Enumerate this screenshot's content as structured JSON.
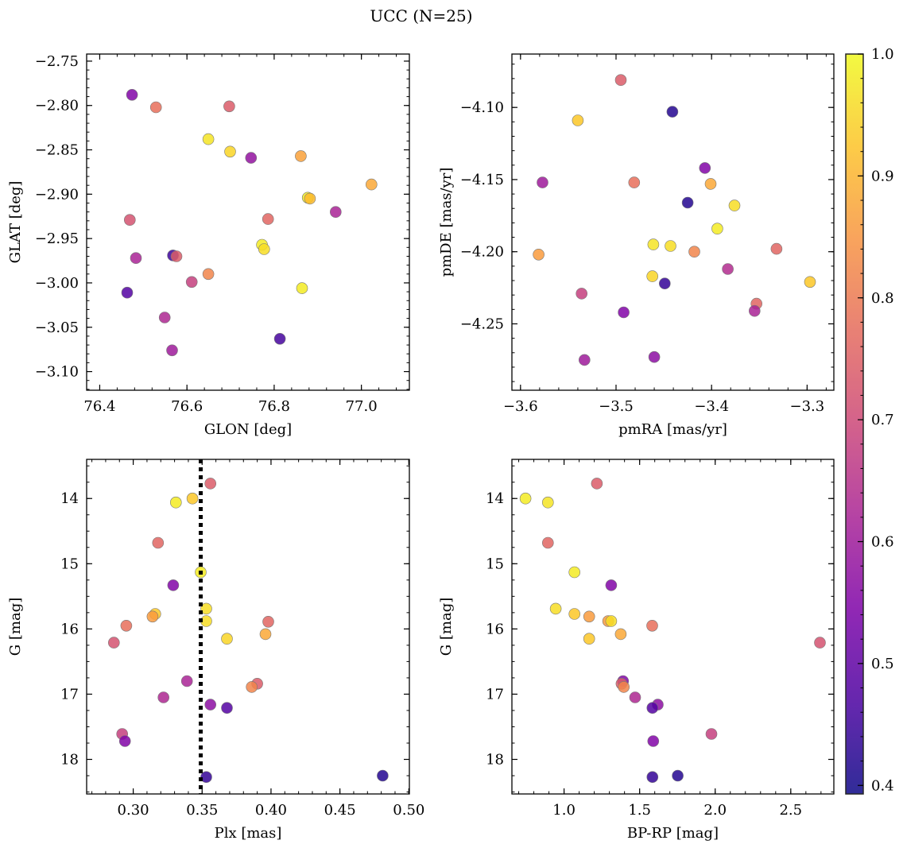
{
  "figure": {
    "title": "UCC (N=25)"
  },
  "colorbar": {
    "range": [
      0.393,
      1.0
    ],
    "ticks": [
      "0.4",
      "0.5",
      "0.6",
      "0.7",
      "0.8",
      "0.9",
      "1.0"
    ],
    "tick_values": [
      0.4,
      0.5,
      0.6,
      0.7,
      0.8,
      0.9,
      1.0
    ],
    "colormap": "plasma"
  },
  "chart_data": [
    {
      "type": "scatter",
      "xlabel": "GLON [deg]",
      "ylabel": "GLAT [deg]",
      "xlim": [
        76.37,
        77.11
      ],
      "ylim": [
        -3.121,
        -2.742
      ],
      "y_inverted": false,
      "xticks": [
        76.4,
        76.6,
        76.8,
        77.0
      ],
      "xtick_labels": [
        "76.4",
        "76.6",
        "76.8",
        "77.0"
      ],
      "yticks": [
        -3.1,
        -3.05,
        -3.0,
        -2.95,
        -2.9,
        -2.85,
        -2.8,
        -2.75
      ],
      "ytick_labels": [
        "−3.10",
        "−3.05",
        "−3.00",
        "−2.95",
        "−2.90",
        "−2.85",
        "−2.80",
        "−2.75"
      ],
      "points": [
        {
          "x": 76.474,
          "y": -2.788,
          "c": 0.55
        },
        {
          "x": 76.529,
          "y": -2.802,
          "c": 0.78
        },
        {
          "x": 76.697,
          "y": -2.801,
          "c": 0.74
        },
        {
          "x": 76.649,
          "y": -2.838,
          "c": 0.97
        },
        {
          "x": 76.699,
          "y": -2.852,
          "c": 0.95
        },
        {
          "x": 76.747,
          "y": -2.859,
          "c": 0.58
        },
        {
          "x": 76.861,
          "y": -2.857,
          "c": 0.87
        },
        {
          "x": 77.023,
          "y": -2.889,
          "c": 0.88
        },
        {
          "x": 76.877,
          "y": -2.904,
          "c": 0.98
        },
        {
          "x": 76.882,
          "y": -2.905,
          "c": 0.91
        },
        {
          "x": 76.941,
          "y": -2.92,
          "c": 0.62
        },
        {
          "x": 76.469,
          "y": -2.929,
          "c": 0.72
        },
        {
          "x": 76.786,
          "y": -2.928,
          "c": 0.76
        },
        {
          "x": 76.772,
          "y": -2.957,
          "c": 0.98
        },
        {
          "x": 76.777,
          "y": -2.962,
          "c": 0.96
        },
        {
          "x": 76.483,
          "y": -2.972,
          "c": 0.62
        },
        {
          "x": 76.568,
          "y": -2.969,
          "c": 0.45
        },
        {
          "x": 76.576,
          "y": -2.97,
          "c": 0.74
        },
        {
          "x": 76.611,
          "y": -2.999,
          "c": 0.68
        },
        {
          "x": 76.649,
          "y": -2.99,
          "c": 0.82
        },
        {
          "x": 76.864,
          "y": -3.006,
          "c": 0.98
        },
        {
          "x": 76.463,
          "y": -3.011,
          "c": 0.48
        },
        {
          "x": 76.549,
          "y": -3.039,
          "c": 0.63
        },
        {
          "x": 76.813,
          "y": -3.063,
          "c": 0.46
        },
        {
          "x": 76.566,
          "y": -3.076,
          "c": 0.6
        }
      ]
    },
    {
      "type": "scatter",
      "xlabel": "pmRA [mas/yr]",
      "ylabel": "pmDE [mas/yr]",
      "xlim": [
        -3.609,
        -3.272
      ],
      "ylim": [
        -4.296,
        -4.063
      ],
      "y_inverted": false,
      "xticks": [
        -3.6,
        -3.5,
        -3.4,
        -3.3
      ],
      "xtick_labels": [
        "−3.6",
        "−3.5",
        "−3.4",
        "−3.3"
      ],
      "yticks": [
        -4.25,
        -4.2,
        -4.15,
        -4.1
      ],
      "ytick_labels": [
        "−4.25",
        "−4.20",
        "−4.15",
        "−4.10"
      ],
      "points": [
        {
          "x": -3.495,
          "y": -4.081,
          "c": 0.74
        },
        {
          "x": -3.54,
          "y": -4.109,
          "c": 0.93
        },
        {
          "x": -3.441,
          "y": -4.103,
          "c": 0.42
        },
        {
          "x": -3.577,
          "y": -4.152,
          "c": 0.6
        },
        {
          "x": -3.481,
          "y": -4.152,
          "c": 0.78
        },
        {
          "x": -3.407,
          "y": -4.142,
          "c": 0.55
        },
        {
          "x": -3.401,
          "y": -4.153,
          "c": 0.88
        },
        {
          "x": -3.425,
          "y": -4.166,
          "c": 0.42
        },
        {
          "x": -3.376,
          "y": -4.168,
          "c": 0.96
        },
        {
          "x": -3.394,
          "y": -4.184,
          "c": 0.98
        },
        {
          "x": -3.461,
          "y": -4.195,
          "c": 0.97
        },
        {
          "x": -3.443,
          "y": -4.196,
          "c": 0.96
        },
        {
          "x": -3.418,
          "y": -4.2,
          "c": 0.82
        },
        {
          "x": -3.581,
          "y": -4.202,
          "c": 0.86
        },
        {
          "x": -3.332,
          "y": -4.198,
          "c": 0.76
        },
        {
          "x": -3.462,
          "y": -4.217,
          "c": 0.95
        },
        {
          "x": -3.449,
          "y": -4.222,
          "c": 0.44
        },
        {
          "x": -3.383,
          "y": -4.212,
          "c": 0.64
        },
        {
          "x": -3.297,
          "y": -4.221,
          "c": 0.93
        },
        {
          "x": -3.536,
          "y": -4.229,
          "c": 0.68
        },
        {
          "x": -3.353,
          "y": -4.236,
          "c": 0.76
        },
        {
          "x": -3.355,
          "y": -4.241,
          "c": 0.62
        },
        {
          "x": -3.492,
          "y": -4.242,
          "c": 0.55
        },
        {
          "x": -3.533,
          "y": -4.275,
          "c": 0.6
        },
        {
          "x": -3.46,
          "y": -4.273,
          "c": 0.57
        }
      ]
    },
    {
      "type": "scatter",
      "xlabel": "Plx [mas]",
      "ylabel": "G [mag]",
      "xlim": [
        0.2662,
        0.5004
      ],
      "ylim": [
        13.4,
        18.53
      ],
      "y_inverted": true,
      "xticks": [
        0.3,
        0.35,
        0.4,
        0.45,
        0.5
      ],
      "xtick_labels": [
        "0.30",
        "0.35",
        "0.40",
        "0.45",
        "0.50"
      ],
      "yticks": [
        14,
        15,
        16,
        17,
        18
      ],
      "ytick_labels": [
        "14",
        "15",
        "16",
        "17",
        "18"
      ],
      "vline": {
        "x": 0.349
      },
      "points": [
        {
          "x": 0.356,
          "y": 13.77,
          "c": 0.74
        },
        {
          "x": 0.343,
          "y": 14.0,
          "c": 0.93
        },
        {
          "x": 0.331,
          "y": 14.06,
          "c": 0.98
        },
        {
          "x": 0.318,
          "y": 14.68,
          "c": 0.76
        },
        {
          "x": 0.349,
          "y": 15.13,
          "c": 0.98
        },
        {
          "x": 0.329,
          "y": 15.33,
          "c": 0.55
        },
        {
          "x": 0.353,
          "y": 15.69,
          "c": 0.96
        },
        {
          "x": 0.316,
          "y": 15.77,
          "c": 0.93
        },
        {
          "x": 0.314,
          "y": 15.81,
          "c": 0.86
        },
        {
          "x": 0.353,
          "y": 15.88,
          "c": 0.96
        },
        {
          "x": 0.398,
          "y": 15.89,
          "c": 0.76
        },
        {
          "x": 0.295,
          "y": 15.95,
          "c": 0.78
        },
        {
          "x": 0.396,
          "y": 16.08,
          "c": 0.88
        },
        {
          "x": 0.368,
          "y": 16.15,
          "c": 0.95
        },
        {
          "x": 0.286,
          "y": 16.21,
          "c": 0.72
        },
        {
          "x": 0.339,
          "y": 16.8,
          "c": 0.62
        },
        {
          "x": 0.39,
          "y": 16.84,
          "c": 0.74
        },
        {
          "x": 0.386,
          "y": 16.89,
          "c": 0.82
        },
        {
          "x": 0.322,
          "y": 17.05,
          "c": 0.63
        },
        {
          "x": 0.356,
          "y": 17.16,
          "c": 0.57
        },
        {
          "x": 0.368,
          "y": 17.21,
          "c": 0.48
        },
        {
          "x": 0.292,
          "y": 17.61,
          "c": 0.68
        },
        {
          "x": 0.294,
          "y": 17.72,
          "c": 0.55
        },
        {
          "x": 0.353,
          "y": 18.27,
          "c": 0.44
        },
        {
          "x": 0.481,
          "y": 18.25,
          "c": 0.42
        }
      ]
    },
    {
      "type": "scatter",
      "xlabel": "BP-RP [mag]",
      "ylabel": "G [mag]",
      "xlim": [
        0.655,
        2.785
      ],
      "ylim": [
        13.4,
        18.53
      ],
      "y_inverted": true,
      "xticks": [
        1.0,
        1.5,
        2.0,
        2.5
      ],
      "xtick_labels": [
        "1.0",
        "1.5",
        "2.0",
        "2.5"
      ],
      "yticks": [
        14,
        15,
        16,
        17,
        18
      ],
      "ytick_labels": [
        "14",
        "15",
        "16",
        "17",
        "18"
      ],
      "points": [
        {
          "x": 0.745,
          "y": 14.0,
          "c": 0.98
        },
        {
          "x": 0.893,
          "y": 14.06,
          "c": 0.97
        },
        {
          "x": 1.217,
          "y": 13.77,
          "c": 0.74
        },
        {
          "x": 0.893,
          "y": 14.68,
          "c": 0.76
        },
        {
          "x": 1.069,
          "y": 15.13,
          "c": 0.98
        },
        {
          "x": 1.312,
          "y": 15.33,
          "c": 0.55
        },
        {
          "x": 0.945,
          "y": 15.69,
          "c": 0.96
        },
        {
          "x": 1.069,
          "y": 15.77,
          "c": 0.93
        },
        {
          "x": 1.166,
          "y": 15.81,
          "c": 0.86
        },
        {
          "x": 1.292,
          "y": 15.88,
          "c": 0.86
        },
        {
          "x": 1.312,
          "y": 15.88,
          "c": 0.96
        },
        {
          "x": 1.583,
          "y": 15.95,
          "c": 0.78
        },
        {
          "x": 1.375,
          "y": 16.08,
          "c": 0.88
        },
        {
          "x": 1.166,
          "y": 16.15,
          "c": 0.93
        },
        {
          "x": 2.693,
          "y": 16.21,
          "c": 0.72
        },
        {
          "x": 1.39,
          "y": 16.8,
          "c": 0.55
        },
        {
          "x": 1.38,
          "y": 16.84,
          "c": 0.74
        },
        {
          "x": 1.395,
          "y": 16.89,
          "c": 0.82
        },
        {
          "x": 1.47,
          "y": 17.05,
          "c": 0.63
        },
        {
          "x": 1.62,
          "y": 17.16,
          "c": 0.57
        },
        {
          "x": 1.585,
          "y": 17.21,
          "c": 0.48
        },
        {
          "x": 1.975,
          "y": 17.61,
          "c": 0.68
        },
        {
          "x": 1.59,
          "y": 17.72,
          "c": 0.55
        },
        {
          "x": 1.585,
          "y": 18.27,
          "c": 0.44
        },
        {
          "x": 1.752,
          "y": 18.25,
          "c": 0.42
        }
      ]
    }
  ]
}
